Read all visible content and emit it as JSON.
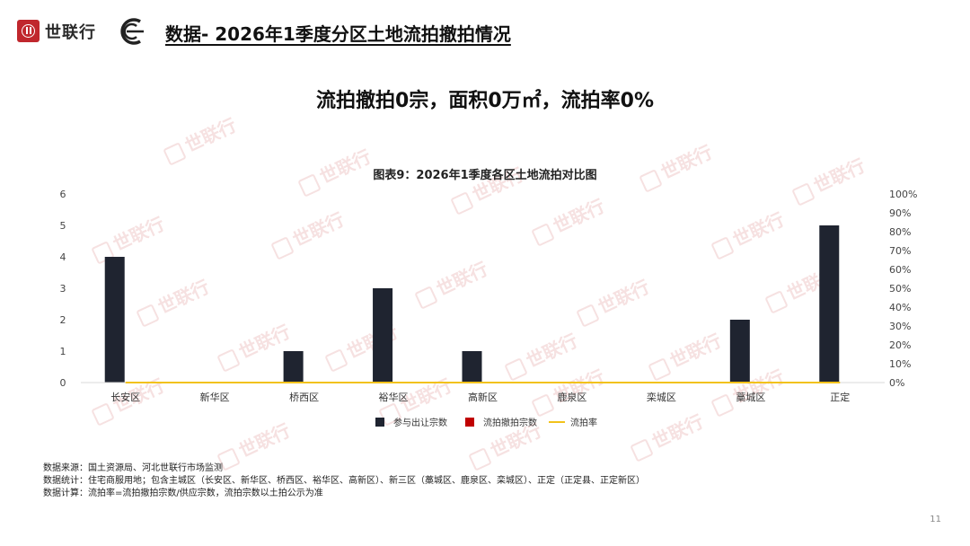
{
  "header": {
    "logo_text": "世联行",
    "page_title": "数据- 2026年1季度分区土地流拍撤拍情况"
  },
  "headline": "流拍撤拍0宗，面积0万㎡，流拍率0%",
  "watermark_text": "世联行",
  "chart_data": {
    "type": "bar",
    "title": "图表9：2026年1季度各区土地流拍对比图",
    "categories": [
      "长安区",
      "新华区",
      "桥西区",
      "裕华区",
      "高新区",
      "鹿泉区",
      "栾城区",
      "藁城区",
      "正定"
    ],
    "series": [
      {
        "name": "参与出让宗数",
        "type": "bar",
        "axis": "left",
        "color": "#1f2430",
        "values": [
          4,
          0,
          1,
          3,
          1,
          0,
          0,
          2,
          5
        ]
      },
      {
        "name": "流拍撤拍宗数",
        "type": "bar",
        "axis": "left",
        "color": "#c00000",
        "values": [
          0,
          0,
          0,
          0,
          0,
          0,
          0,
          0,
          0
        ]
      },
      {
        "name": "流拍率",
        "type": "line",
        "axis": "right",
        "color": "#f2c21b",
        "values": [
          0,
          0,
          0,
          0,
          0,
          0,
          0,
          0,
          0
        ]
      }
    ],
    "ylim": [
      0,
      6
    ],
    "yticks": [
      "0",
      "1",
      "2",
      "3",
      "4",
      "5",
      "6"
    ],
    "y2lim": [
      0,
      100
    ],
    "y2ticks": [
      "0%",
      "10%",
      "20%",
      "30%",
      "40%",
      "50%",
      "60%",
      "70%",
      "80%",
      "90%",
      "100%"
    ],
    "grid": false,
    "legend_position": "bottom"
  },
  "notes": [
    "数据来源：国土资源局、河北世联行市场监测",
    "数据统计：住宅商服用地；包含主城区（长安区、新华区、桥西区、裕华区、高新区）、新三区（藁城区、鹿泉区、栾城区）、正定（正定县、正定新区）",
    "数据计算：流拍率=流拍撤拍宗数/供应宗数，流拍宗数以土拍公示为准"
  ],
  "page_number": "11"
}
